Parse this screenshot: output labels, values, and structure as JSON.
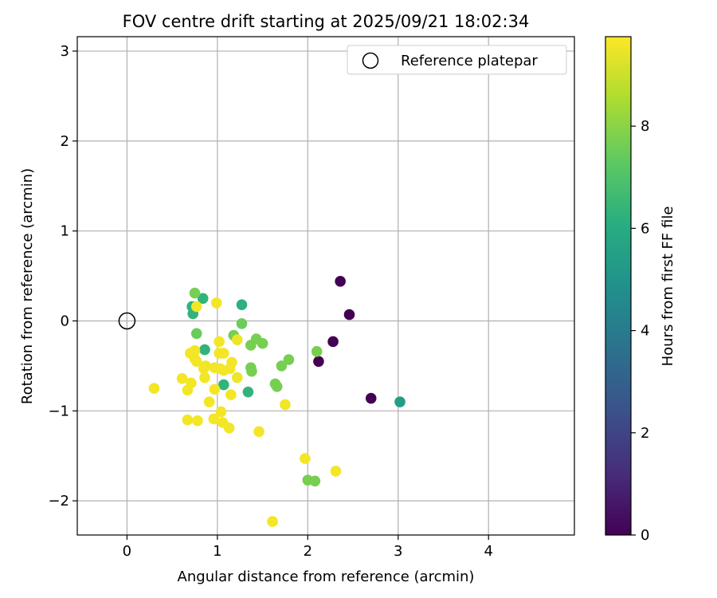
{
  "chart_data": {
    "type": "scatter",
    "title": "FOV centre drift starting at 2025/09/21 18:02:34",
    "xlabel": "Angular distance from reference (arcmin)",
    "ylabel": "Rotation from reference (arcmin)",
    "xlim": [
      -0.55,
      4.95
    ],
    "ylim": [
      -2.38,
      3.16
    ],
    "xticks": [
      0,
      1,
      2,
      3,
      4
    ],
    "yticks": [
      -2,
      -1,
      0,
      1,
      2,
      3
    ],
    "grid": true,
    "legend": {
      "position": "top-right",
      "entries": [
        "Reference platepar"
      ]
    },
    "colorbar": {
      "label": "Hours from first FF file",
      "min": 0,
      "max": 9.75,
      "ticks": [
        0,
        2,
        4,
        6,
        8
      ]
    },
    "reference": {
      "x": 0,
      "y": 0,
      "label": "Reference platepar"
    },
    "points": [
      {
        "x": 2.36,
        "y": 0.44,
        "h": 0.0
      },
      {
        "x": 2.46,
        "y": 0.07,
        "h": 0.0
      },
      {
        "x": 2.28,
        "y": -0.23,
        "h": 0.0
      },
      {
        "x": 2.12,
        "y": -0.45,
        "h": 0.0
      },
      {
        "x": 2.7,
        "y": -0.86,
        "h": 0.0
      },
      {
        "x": 3.02,
        "y": -0.9,
        "h": 5.4
      },
      {
        "x": 0.84,
        "y": 0.25,
        "h": 6.3
      },
      {
        "x": 0.72,
        "y": 0.16,
        "h": 6.3
      },
      {
        "x": 0.73,
        "y": 0.08,
        "h": 6.3
      },
      {
        "x": 1.27,
        "y": 0.18,
        "h": 6.2
      },
      {
        "x": 0.86,
        "y": -0.32,
        "h": 6.3
      },
      {
        "x": 1.07,
        "y": -0.71,
        "h": 6.3
      },
      {
        "x": 1.34,
        "y": -0.79,
        "h": 6.3
      },
      {
        "x": 0.75,
        "y": 0.31,
        "h": 7.7
      },
      {
        "x": 1.27,
        "y": -0.03,
        "h": 7.5
      },
      {
        "x": 0.77,
        "y": -0.14,
        "h": 7.5
      },
      {
        "x": 1.18,
        "y": -0.16,
        "h": 7.7
      },
      {
        "x": 1.37,
        "y": -0.27,
        "h": 7.7
      },
      {
        "x": 1.43,
        "y": -0.2,
        "h": 7.7
      },
      {
        "x": 1.5,
        "y": -0.25,
        "h": 7.7
      },
      {
        "x": 1.37,
        "y": -0.52,
        "h": 7.7
      },
      {
        "x": 1.38,
        "y": -0.56,
        "h": 7.7
      },
      {
        "x": 1.71,
        "y": -0.5,
        "h": 7.7
      },
      {
        "x": 1.79,
        "y": -0.43,
        "h": 7.7
      },
      {
        "x": 2.1,
        "y": -0.34,
        "h": 7.7
      },
      {
        "x": 1.64,
        "y": -0.7,
        "h": 7.7
      },
      {
        "x": 1.66,
        "y": -0.73,
        "h": 7.7
      },
      {
        "x": 2.0,
        "y": -1.77,
        "h": 7.7
      },
      {
        "x": 2.08,
        "y": -1.78,
        "h": 7.7
      },
      {
        "x": 0.77,
        "y": 0.16,
        "h": 9.6
      },
      {
        "x": 0.99,
        "y": 0.2,
        "h": 9.6
      },
      {
        "x": 1.22,
        "y": -0.21,
        "h": 9.5
      },
      {
        "x": 1.02,
        "y": -0.23,
        "h": 9.6
      },
      {
        "x": 1.02,
        "y": -0.36,
        "h": 9.6
      },
      {
        "x": 1.07,
        "y": -0.36,
        "h": 9.6
      },
      {
        "x": 0.7,
        "y": -0.36,
        "h": 9.6
      },
      {
        "x": 0.75,
        "y": -0.33,
        "h": 9.6
      },
      {
        "x": 0.75,
        "y": -0.42,
        "h": 9.6
      },
      {
        "x": 0.77,
        "y": -0.45,
        "h": 9.6
      },
      {
        "x": 0.87,
        "y": -0.5,
        "h": 9.5
      },
      {
        "x": 0.85,
        "y": -0.53,
        "h": 9.6
      },
      {
        "x": 0.97,
        "y": -0.52,
        "h": 9.6
      },
      {
        "x": 1.03,
        "y": -0.53,
        "h": 9.6
      },
      {
        "x": 1.07,
        "y": -0.55,
        "h": 9.6
      },
      {
        "x": 1.16,
        "y": -0.46,
        "h": 9.6
      },
      {
        "x": 1.14,
        "y": -0.53,
        "h": 9.6
      },
      {
        "x": 1.22,
        "y": -0.63,
        "h": 9.5
      },
      {
        "x": 0.61,
        "y": -0.64,
        "h": 9.6
      },
      {
        "x": 0.86,
        "y": -0.63,
        "h": 9.6
      },
      {
        "x": 0.71,
        "y": -0.69,
        "h": 9.6
      },
      {
        "x": 0.67,
        "y": -0.77,
        "h": 9.6
      },
      {
        "x": 0.97,
        "y": -0.76,
        "h": 9.6
      },
      {
        "x": 1.15,
        "y": -0.82,
        "h": 9.6
      },
      {
        "x": 0.3,
        "y": -0.75,
        "h": 9.6
      },
      {
        "x": 0.91,
        "y": -0.9,
        "h": 9.6
      },
      {
        "x": 1.04,
        "y": -1.01,
        "h": 9.6
      },
      {
        "x": 0.96,
        "y": -1.09,
        "h": 9.6
      },
      {
        "x": 1.06,
        "y": -1.13,
        "h": 9.6
      },
      {
        "x": 1.13,
        "y": -1.19,
        "h": 9.6
      },
      {
        "x": 0.67,
        "y": -1.1,
        "h": 9.6
      },
      {
        "x": 0.78,
        "y": -1.11,
        "h": 9.6
      },
      {
        "x": 1.75,
        "y": -0.93,
        "h": 9.6
      },
      {
        "x": 1.46,
        "y": -1.23,
        "h": 9.6
      },
      {
        "x": 1.97,
        "y": -1.53,
        "h": 9.6
      },
      {
        "x": 2.31,
        "y": -1.67,
        "h": 9.6
      },
      {
        "x": 1.61,
        "y": -2.23,
        "h": 9.6
      }
    ]
  }
}
